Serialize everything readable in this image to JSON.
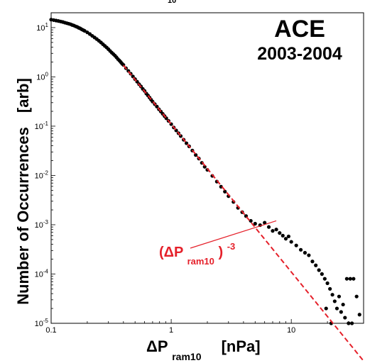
{
  "chart_data": {
    "type": "scatter",
    "title": "ACE",
    "subtitle": "2003-2004",
    "xlabel": {
      "base": "ΔP",
      "sub": "ram10",
      "unit": "[nPa]"
    },
    "ylabel": {
      "text": "Number of Occurrences",
      "unit": "[arb]"
    },
    "xscale": "log",
    "yscale": "log",
    "xlim": [
      0.1,
      40
    ],
    "ylim": [
      1e-05,
      20
    ],
    "x_ticks": [
      {
        "v": 0.1,
        "label": "0.1"
      },
      {
        "v": 1,
        "label": "1"
      },
      {
        "v": 10,
        "label": "10"
      }
    ],
    "y_ticks": [
      {
        "v": 1e-05,
        "mant": "10",
        "exp": "-5"
      },
      {
        "v": 0.0001,
        "mant": "10",
        "exp": "-4"
      },
      {
        "v": 0.001,
        "mant": "10",
        "exp": "-3"
      },
      {
        "v": 0.01,
        "mant": "10",
        "exp": "-2"
      },
      {
        "v": 0.1,
        "mant": "10",
        "exp": "-1"
      },
      {
        "v": 1,
        "mant": "10",
        "exp": "0"
      },
      {
        "v": 10,
        "mant": "10",
        "exp": "1"
      }
    ],
    "top_cut_label": "10",
    "series": [
      {
        "color": "#000000",
        "points": [
          [
            0.1,
            14.5
          ],
          [
            0.105,
            14.2
          ],
          [
            0.11,
            13.9
          ],
          [
            0.115,
            13.6
          ],
          [
            0.12,
            13.3
          ],
          [
            0.125,
            13.0
          ],
          [
            0.13,
            12.6
          ],
          [
            0.135,
            12.3
          ],
          [
            0.14,
            12.0
          ],
          [
            0.145,
            11.7
          ],
          [
            0.15,
            11.3
          ],
          [
            0.155,
            11.0
          ],
          [
            0.16,
            10.6
          ],
          [
            0.165,
            10.3
          ],
          [
            0.17,
            9.9
          ],
          [
            0.175,
            9.6
          ],
          [
            0.18,
            9.2
          ],
          [
            0.185,
            8.9
          ],
          [
            0.19,
            8.6
          ],
          [
            0.2,
            8.0
          ],
          [
            0.21,
            7.4
          ],
          [
            0.22,
            6.8
          ],
          [
            0.23,
            6.3
          ],
          [
            0.24,
            5.85
          ],
          [
            0.25,
            5.4
          ],
          [
            0.26,
            5.0
          ],
          [
            0.27,
            4.6
          ],
          [
            0.28,
            4.25
          ],
          [
            0.29,
            3.95
          ],
          [
            0.3,
            3.65
          ],
          [
            0.31,
            3.35
          ],
          [
            0.32,
            3.1
          ],
          [
            0.33,
            2.9
          ],
          [
            0.34,
            2.7
          ],
          [
            0.35,
            2.5
          ],
          [
            0.36,
            2.3
          ],
          [
            0.37,
            2.15
          ],
          [
            0.38,
            2.0
          ],
          [
            0.39,
            1.85
          ],
          [
            0.4,
            1.75
          ],
          [
            0.42,
            1.5
          ],
          [
            0.44,
            1.32
          ],
          [
            0.46,
            1.16
          ],
          [
            0.48,
            1.02
          ],
          [
            0.5,
            0.9
          ],
          [
            0.52,
            0.8
          ],
          [
            0.54,
            0.71
          ],
          [
            0.56,
            0.64
          ],
          [
            0.58,
            0.57
          ],
          [
            0.6,
            0.52
          ],
          [
            0.62,
            0.46
          ],
          [
            0.64,
            0.42
          ],
          [
            0.66,
            0.38
          ],
          [
            0.68,
            0.345
          ],
          [
            0.7,
            0.315
          ],
          [
            0.73,
            0.28
          ],
          [
            0.76,
            0.25
          ],
          [
            0.79,
            0.22
          ],
          [
            0.82,
            0.198
          ],
          [
            0.85,
            0.178
          ],
          [
            0.88,
            0.16
          ],
          [
            0.91,
            0.145
          ],
          [
            0.95,
            0.128
          ],
          [
            1.0,
            0.11
          ],
          [
            1.05,
            0.094
          ],
          [
            1.1,
            0.082
          ],
          [
            1.15,
            0.072
          ],
          [
            1.2,
            0.063
          ],
          [
            1.27,
            0.053
          ],
          [
            1.34,
            0.045
          ],
          [
            1.41,
            0.039
          ],
          [
            1.5,
            0.032
          ],
          [
            1.6,
            0.026
          ],
          [
            1.7,
            0.022
          ],
          [
            1.8,
            0.018
          ],
          [
            1.9,
            0.015
          ],
          [
            2.0,
            0.013
          ],
          [
            2.2,
            0.0098
          ],
          [
            2.4,
            0.0075
          ],
          [
            2.6,
            0.0059
          ],
          [
            2.8,
            0.0047
          ],
          [
            3.0,
            0.0038
          ],
          [
            3.3,
            0.0029
          ],
          [
            3.6,
            0.0022
          ],
          [
            3.9,
            0.0018
          ],
          [
            4.2,
            0.0015
          ],
          [
            4.6,
            0.0012
          ],
          [
            5.0,
            0.00105
          ],
          [
            5.5,
            0.00098
          ],
          [
            6.0,
            0.0011
          ],
          [
            6.5,
            0.0009
          ],
          [
            7.0,
            0.00075
          ],
          [
            7.5,
            0.0008
          ],
          [
            8.0,
            0.00068
          ],
          [
            8.5,
            0.0006
          ],
          [
            9.0,
            0.00052
          ],
          [
            9.5,
            0.00058
          ],
          [
            10.0,
            0.00045
          ],
          [
            11.0,
            0.00038
          ],
          [
            12.0,
            0.00031
          ],
          [
            13.0,
            0.00027
          ],
          [
            14.0,
            0.00024
          ],
          [
            15.0,
            0.00018
          ],
          [
            16.0,
            0.00015
          ],
          [
            17.0,
            0.00012
          ],
          [
            18.0,
            0.0001
          ],
          [
            19.0,
            8e-05
          ],
          [
            20.0,
            6.5e-05
          ],
          [
            21.0,
            5e-05
          ],
          [
            22.0,
            3.8e-05
          ],
          [
            23.0,
            2.8e-05
          ],
          [
            24.0,
            2e-05
          ],
          [
            26.0,
            1.7e-05
          ],
          [
            28.0,
            1.3e-05
          ],
          [
            30.0,
            1e-05
          ],
          [
            19.5,
            2e-05
          ],
          [
            21.5,
            1e-05
          ],
          [
            25.0,
            3.5e-05
          ],
          [
            27.0,
            2.4e-05
          ],
          [
            29.0,
            8e-05
          ],
          [
            31.0,
            8e-05
          ],
          [
            33.0,
            8e-05
          ],
          [
            35.0,
            3.5e-05
          ],
          [
            37.0,
            1.5e-05
          ],
          [
            32.0,
            1e-05
          ]
        ]
      }
    ],
    "fit_line": {
      "color": "#e5202a",
      "style": "dashed",
      "slope": -3,
      "x_range": [
        0.4,
        40
      ],
      "anchor": [
        1.0,
        0.11
      ]
    },
    "annotation": {
      "base": "(ΔP",
      "sub": "ram10",
      "close": ")",
      "exponent": "-3",
      "arrow_to": [
        7.5,
        0.0012
      ],
      "color": "#e5202a"
    }
  }
}
